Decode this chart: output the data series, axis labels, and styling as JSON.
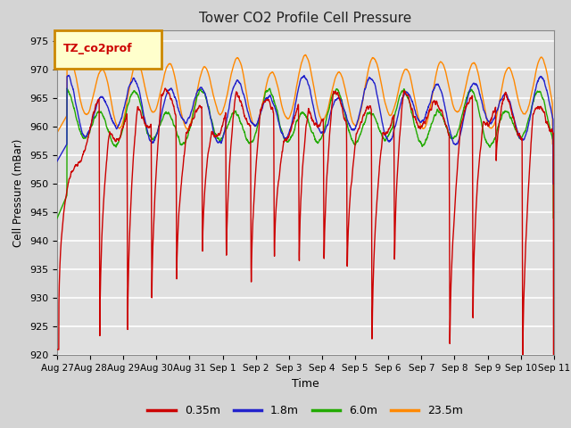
{
  "title": "Tower CO2 Profile Cell Pressure",
  "ylabel": "Cell Pressure (mBar)",
  "xlabel": "Time",
  "ylim": [
    920,
    977
  ],
  "yticks": [
    920,
    925,
    930,
    935,
    940,
    945,
    950,
    955,
    960,
    965,
    970,
    975
  ],
  "legend_label": "TZ_co2prof",
  "series_labels": [
    "0.35m",
    "1.8m",
    "6.0m",
    "23.5m"
  ],
  "series_colors": [
    "#cc0000",
    "#2222cc",
    "#22aa00",
    "#ff8800"
  ],
  "background_color": "#e0e0e0",
  "grid_color": "#ffffff",
  "xtick_labels": [
    "Aug 27",
    "Aug 28",
    "Aug 29",
    "Aug 30",
    "Aug 31",
    "Sep 1",
    "Sep 2",
    "Sep 3",
    "Sep 4",
    "Sep 5",
    "Sep 6",
    "Sep 7",
    "Sep 8",
    "Sep 9",
    "Sep 10",
    "Sep 11"
  ],
  "red_drop_times": [
    1.28,
    2.12,
    2.85,
    3.6,
    4.38,
    5.1,
    5.85,
    6.55,
    7.3,
    8.05,
    8.75,
    9.5,
    10.18,
    11.85,
    12.55,
    13.25,
    14.05
  ],
  "red_drop_depths": [
    43,
    40,
    32,
    30,
    27,
    28,
    30,
    27,
    30,
    28,
    27,
    44,
    28,
    38,
    40,
    10,
    42
  ],
  "red_drop_widths": [
    0.06,
    0.06,
    0.05,
    0.05,
    0.04,
    0.05,
    0.04,
    0.04,
    0.04,
    0.04,
    0.03,
    0.08,
    0.04,
    0.07,
    0.07,
    0.03,
    0.07
  ]
}
